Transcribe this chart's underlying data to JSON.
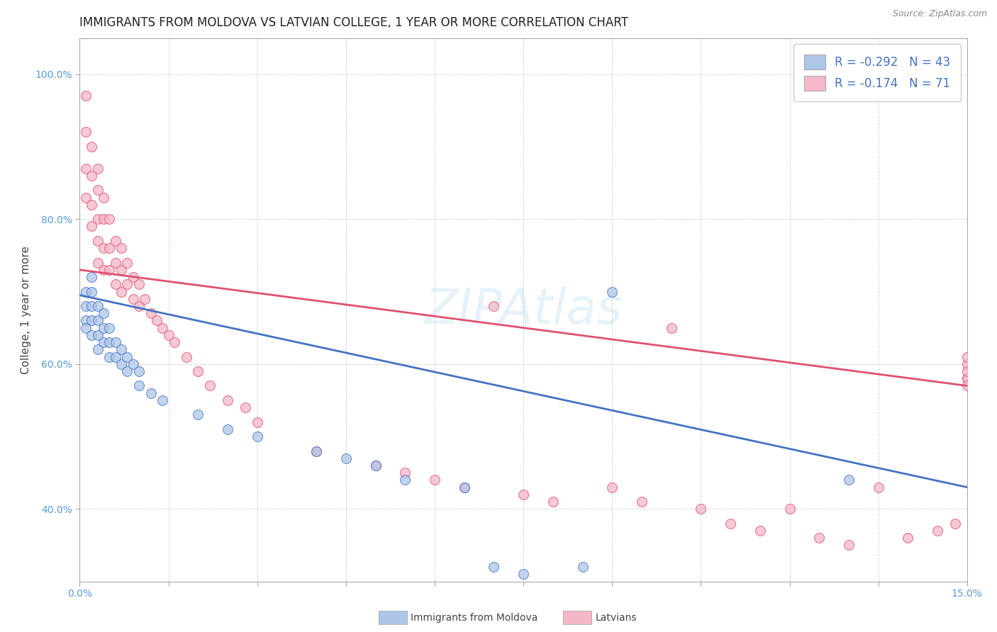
{
  "title": "IMMIGRANTS FROM MOLDOVA VS LATVIAN COLLEGE, 1 YEAR OR MORE CORRELATION CHART",
  "source": "Source: ZipAtlas.com",
  "ylabel": "College, 1 year or more",
  "xlim": [
    0.0,
    0.15
  ],
  "ylim": [
    0.3,
    1.05
  ],
  "xticks": [
    0.0,
    0.015,
    0.03,
    0.045,
    0.06,
    0.075,
    0.09,
    0.105,
    0.12,
    0.135,
    0.15
  ],
  "xtick_labels": [
    "0.0%",
    "",
    "",
    "",
    "",
    "",
    "",
    "",
    "",
    "",
    "15.0%"
  ],
  "yticks": [
    0.4,
    0.6,
    0.8,
    1.0
  ],
  "ytick_labels": [
    "40.0%",
    "60.0%",
    "80.0%",
    "100.0%"
  ],
  "legend_r1": "R = -0.292",
  "legend_n1": "N = 43",
  "legend_r2": "R = -0.174",
  "legend_n2": "N = 71",
  "blue_color": "#AEC6E8",
  "pink_color": "#F4B8C8",
  "blue_line_color": "#4472C4",
  "pink_line_color": "#E05070",
  "watermark": "ZIPAtlas",
  "blue_x": [
    0.001,
    0.001,
    0.001,
    0.001,
    0.002,
    0.002,
    0.002,
    0.002,
    0.002,
    0.003,
    0.003,
    0.003,
    0.003,
    0.004,
    0.004,
    0.004,
    0.005,
    0.005,
    0.005,
    0.006,
    0.006,
    0.007,
    0.007,
    0.008,
    0.008,
    0.009,
    0.01,
    0.01,
    0.012,
    0.014,
    0.02,
    0.025,
    0.03,
    0.04,
    0.045,
    0.05,
    0.055,
    0.065,
    0.07,
    0.075,
    0.085,
    0.09,
    0.13
  ],
  "blue_y": [
    0.7,
    0.68,
    0.66,
    0.65,
    0.72,
    0.7,
    0.68,
    0.66,
    0.64,
    0.68,
    0.66,
    0.64,
    0.62,
    0.67,
    0.65,
    0.63,
    0.65,
    0.63,
    0.61,
    0.63,
    0.61,
    0.62,
    0.6,
    0.61,
    0.59,
    0.6,
    0.59,
    0.57,
    0.56,
    0.55,
    0.53,
    0.51,
    0.5,
    0.48,
    0.47,
    0.46,
    0.44,
    0.43,
    0.32,
    0.31,
    0.32,
    0.7,
    0.44
  ],
  "pink_x": [
    0.001,
    0.001,
    0.001,
    0.001,
    0.002,
    0.002,
    0.002,
    0.002,
    0.003,
    0.003,
    0.003,
    0.003,
    0.003,
    0.004,
    0.004,
    0.004,
    0.004,
    0.005,
    0.005,
    0.005,
    0.006,
    0.006,
    0.006,
    0.007,
    0.007,
    0.007,
    0.008,
    0.008,
    0.009,
    0.009,
    0.01,
    0.01,
    0.011,
    0.012,
    0.013,
    0.014,
    0.015,
    0.016,
    0.018,
    0.02,
    0.022,
    0.025,
    0.028,
    0.03,
    0.04,
    0.05,
    0.055,
    0.06,
    0.065,
    0.07,
    0.075,
    0.08,
    0.09,
    0.095,
    0.1,
    0.105,
    0.11,
    0.115,
    0.12,
    0.125,
    0.13,
    0.135,
    0.14,
    0.145,
    0.148,
    0.15,
    0.15,
    0.15,
    0.15,
    0.15,
    0.15
  ],
  "pink_y": [
    0.97,
    0.92,
    0.87,
    0.83,
    0.9,
    0.86,
    0.82,
    0.79,
    0.87,
    0.84,
    0.8,
    0.77,
    0.74,
    0.83,
    0.8,
    0.76,
    0.73,
    0.8,
    0.76,
    0.73,
    0.77,
    0.74,
    0.71,
    0.76,
    0.73,
    0.7,
    0.74,
    0.71,
    0.72,
    0.69,
    0.71,
    0.68,
    0.69,
    0.67,
    0.66,
    0.65,
    0.64,
    0.63,
    0.61,
    0.59,
    0.57,
    0.55,
    0.54,
    0.52,
    0.48,
    0.46,
    0.45,
    0.44,
    0.43,
    0.68,
    0.42,
    0.41,
    0.43,
    0.41,
    0.65,
    0.4,
    0.38,
    0.37,
    0.4,
    0.36,
    0.35,
    0.43,
    0.36,
    0.37,
    0.38,
    0.58,
    0.6,
    0.61,
    0.58,
    0.59,
    0.57
  ],
  "title_fontsize": 12,
  "axis_label_fontsize": 11,
  "tick_fontsize": 10,
  "legend_fontsize": 12
}
